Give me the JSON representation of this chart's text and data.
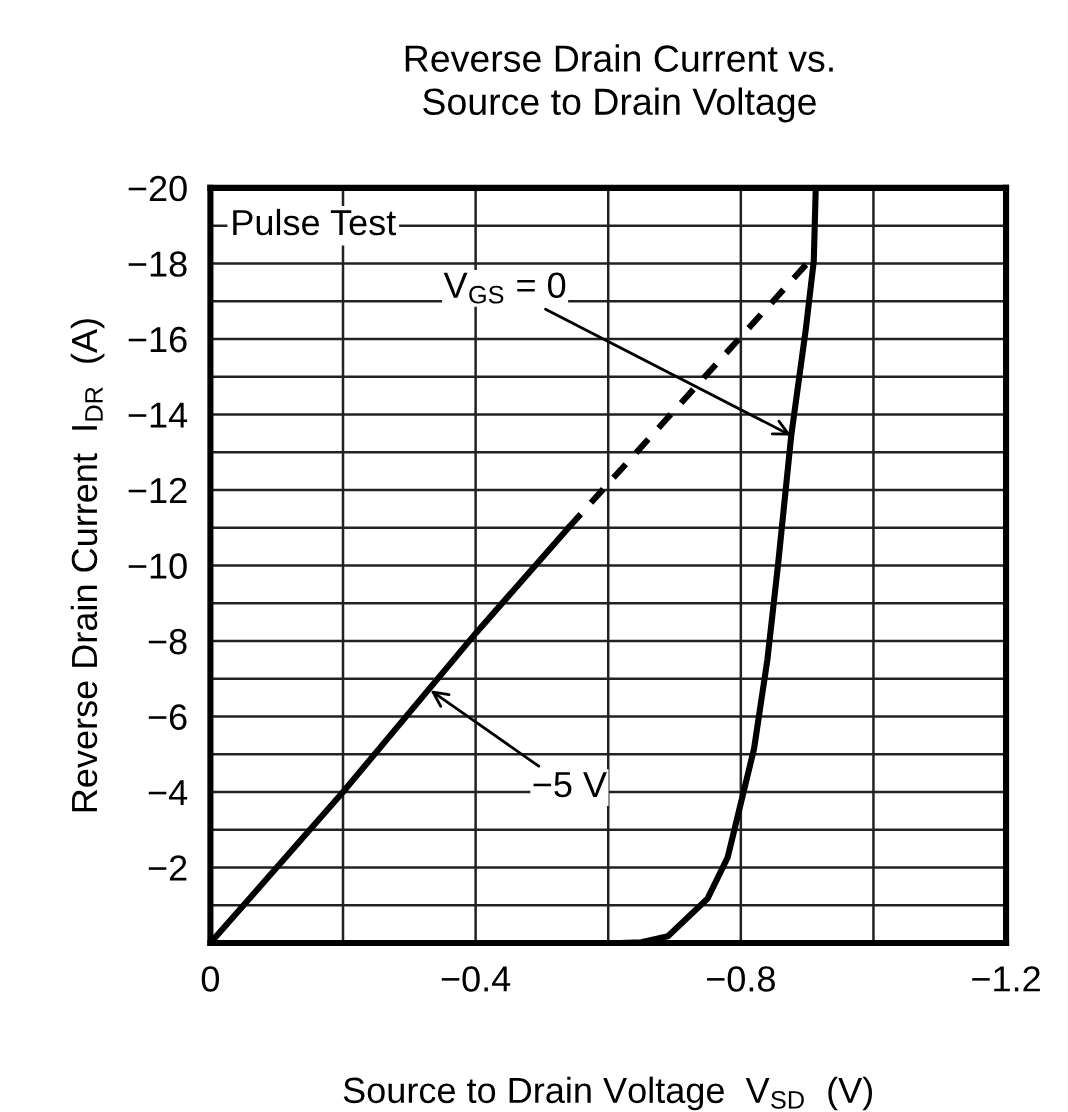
{
  "chart_data": {
    "type": "line",
    "title": "Reverse Drain Current vs.\nSource to Drain Voltage",
    "xlabel": "Source to Drain Voltage  V$_{SD}$  (V)",
    "ylabel": "Reverse Drain Current  I$_{DR}$  (A)",
    "series": [
      {
        "color": "#000000",
        "line_style": "solid",
        "x": [
          0,
          -0.2,
          -0.4,
          -0.54
        ],
        "values": [
          0,
          -4.0,
          -8.2,
          -11.0
        ]
      },
      {
        "color": "#000000",
        "line_style": "dashed",
        "x": [
          -0.54,
          -0.9
        ],
        "values": [
          -11.0,
          -18.0
        ]
      },
      {
        "color": "#000000",
        "line_style": "solid",
        "x": [
          -0.618,
          -0.65,
          -0.69,
          -0.75,
          -0.78,
          -0.8,
          -0.82,
          -0.84,
          -0.856,
          -0.876,
          -0.898,
          -0.91,
          -0.913
        ],
        "values": [
          0,
          -0.02,
          -0.18,
          -1.18,
          -2.26,
          -3.7,
          -5.15,
          -7.5,
          -10.0,
          -13.44,
          -16.26,
          -18.06,
          -20.0
        ]
      }
    ],
    "annotations": [
      "Pulse Test",
      {
        "text": "V$_{GS}$ = 0",
        "x": -0.876,
        "y": -13.44
      },
      {
        "text": "−5 V",
        "x": -0.332,
        "y": -6.69
      }
    ],
    "xlim": [
      0,
      -1.2
    ],
    "ylim": [
      0,
      -20
    ],
    "xticks": [
      0,
      {
        "value": -0.2,
        "label": null
      },
      {
        "value": -0.4,
        "label": "−0.4"
      },
      {
        "value": -0.6,
        "label": null
      },
      {
        "value": -0.8,
        "label": "−0.8"
      },
      {
        "value": -1.0,
        "label": null
      },
      {
        "value": -1.2,
        "label": "−1.2"
      }
    ],
    "yticks": [
      {
        "value": -1,
        "label": null
      },
      {
        "value": -2,
        "label": "−2"
      },
      {
        "value": -3,
        "label": null
      },
      {
        "value": -4,
        "label": "−4"
      },
      {
        "value": -5,
        "label": null
      },
      {
        "value": -6,
        "label": "−6"
      },
      {
        "value": -7,
        "label": null
      },
      {
        "value": -8,
        "label": "−8"
      },
      {
        "value": -9,
        "label": null
      },
      {
        "value": -10,
        "label": "−10"
      },
      {
        "value": -11,
        "label": null
      },
      {
        "value": -12,
        "label": "−12"
      },
      {
        "value": -13,
        "label": null
      },
      {
        "value": -14,
        "label": "−14"
      },
      {
        "value": -15,
        "label": null
      },
      {
        "value": -16,
        "label": "−16"
      },
      {
        "value": -17,
        "label": null
      },
      {
        "value": -18,
        "label": "−18"
      },
      {
        "value": -19,
        "label": null
      },
      {
        "value": -20,
        "label": "−20"
      }
    ],
    "grid": true,
    "marker": "none"
  }
}
